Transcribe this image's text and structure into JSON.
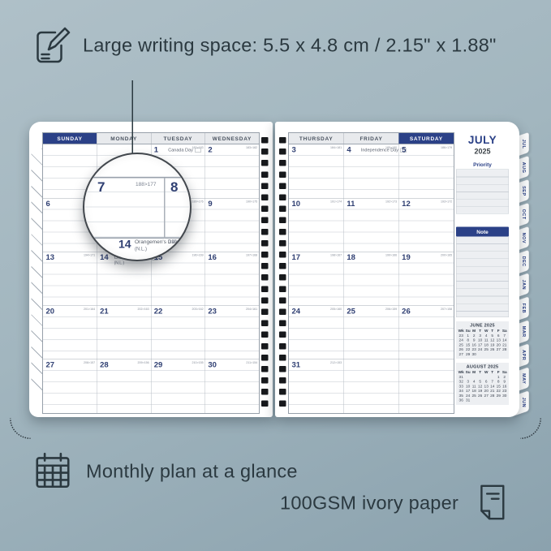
{
  "annotations": {
    "top": {
      "icon": "pencil-note-icon",
      "text": "Large writing space: 5.5 x 4.8 cm / 2.15\" x 1.88\""
    },
    "bottom_left": {
      "icon": "calendar-grid-icon",
      "text": "Monthly plan at a glance"
    },
    "bottom_right": {
      "icon": "paper-icon",
      "text": "100GSM ivory paper"
    }
  },
  "colors": {
    "navy": "#2b4187",
    "ink": "#2b3940",
    "page": "#ffffff",
    "panel": "#edeff2",
    "hole": "#17191c"
  },
  "planner": {
    "left_page": {
      "headers": [
        "SUNDAY",
        "MONDAY",
        "TUESDAY",
        "WEDNESDAY"
      ],
      "highlight_header_index": 0,
      "rows": [
        [
          {
            "day": "",
            "code": ""
          },
          {
            "day": "",
            "code": ""
          },
          {
            "day": "1",
            "code": "182>183",
            "holiday": "Canada Day",
            "flag": true
          },
          {
            "day": "2",
            "code": "183>182"
          }
        ],
        [
          {
            "day": "6",
            "code": "187>178"
          },
          {
            "day": "7",
            "code": "188>177"
          },
          {
            "day": "8",
            "code": "189>176"
          },
          {
            "day": "9",
            "code": "190>175"
          }
        ],
        [
          {
            "day": "13",
            "code": "194>171"
          },
          {
            "day": "14",
            "code": "195>170",
            "holiday": "Orangemen's Day",
            "holiday_sub": "(N.L.)",
            "flag": true
          },
          {
            "day": "15",
            "code": "196>169"
          },
          {
            "day": "16",
            "code": "197>168"
          }
        ],
        [
          {
            "day": "20",
            "code": "201>164"
          },
          {
            "day": "21",
            "code": "202>163"
          },
          {
            "day": "22",
            "code": "203>162"
          },
          {
            "day": "23",
            "code": "204>161"
          }
        ],
        [
          {
            "day": "27",
            "code": "208>157"
          },
          {
            "day": "28",
            "code": "209>156"
          },
          {
            "day": "29",
            "code": "210>155"
          },
          {
            "day": "30",
            "code": "211>154"
          }
        ]
      ]
    },
    "right_page": {
      "headers": [
        "THURSDAY",
        "FRIDAY",
        "SATURDAY"
      ],
      "highlight_header_index": 2,
      "rows": [
        [
          {
            "day": "3",
            "code": "184>181"
          },
          {
            "day": "4",
            "code": "185>180",
            "holiday": "Independence Day",
            "flag": true
          },
          {
            "day": "5",
            "code": "186>179"
          }
        ],
        [
          {
            "day": "10",
            "code": "191>174"
          },
          {
            "day": "11",
            "code": "192>173"
          },
          {
            "day": "12",
            "code": "193>172"
          }
        ],
        [
          {
            "day": "17",
            "code": "198>167"
          },
          {
            "day": "18",
            "code": "199>166"
          },
          {
            "day": "19",
            "code": "200>165"
          }
        ],
        [
          {
            "day": "24",
            "code": "205>160"
          },
          {
            "day": "25",
            "code": "206>159"
          },
          {
            "day": "26",
            "code": "207>158"
          }
        ],
        [
          {
            "day": "31",
            "code": "212>153"
          },
          {
            "day": "",
            "code": ""
          },
          {
            "day": "",
            "code": ""
          }
        ]
      ]
    },
    "sidebar": {
      "month": "JULY",
      "year": "2025",
      "priority_label": "Priority",
      "note_label": "Note",
      "mini_calendars": [
        {
          "title": "JUNE 2025",
          "cols": [
            "Wk",
            "Su",
            "M",
            "T",
            "W",
            "T",
            "F",
            "Sa"
          ],
          "weeks": [
            [
              "23",
              "1",
              "2",
              "3",
              "4",
              "5",
              "6",
              "7"
            ],
            [
              "24",
              "8",
              "9",
              "10",
              "11",
              "12",
              "13",
              "14"
            ],
            [
              "25",
              "15",
              "16",
              "17",
              "18",
              "19",
              "20",
              "21"
            ],
            [
              "26",
              "22",
              "23",
              "24",
              "25",
              "26",
              "27",
              "28"
            ],
            [
              "27",
              "29",
              "30",
              "",
              "",
              "",
              "",
              ""
            ]
          ]
        },
        {
          "title": "AUGUST 2025",
          "cols": [
            "Wk",
            "Su",
            "M",
            "T",
            "W",
            "T",
            "F",
            "Sa"
          ],
          "weeks": [
            [
              "31",
              "",
              "",
              "",
              "",
              "",
              "1",
              "2"
            ],
            [
              "32",
              "3",
              "4",
              "5",
              "6",
              "7",
              "8",
              "9"
            ],
            [
              "33",
              "10",
              "11",
              "12",
              "13",
              "14",
              "15",
              "16"
            ],
            [
              "34",
              "17",
              "18",
              "19",
              "20",
              "21",
              "22",
              "23"
            ],
            [
              "35",
              "24",
              "25",
              "26",
              "27",
              "28",
              "29",
              "30"
            ],
            [
              "36",
              "31",
              "",
              "",
              "",
              "",
              "",
              ""
            ]
          ]
        }
      ]
    },
    "tabs": [
      "JUL",
      "AUG",
      "SEP",
      "OCT",
      "NOV",
      "DEC",
      "JAN",
      "FEB",
      "MAR",
      "APR",
      "MAY",
      "JUN"
    ],
    "binding_holes_per_side": 24,
    "magnifier": {
      "day_left": "7",
      "code_left": "188>177",
      "day_right": "8",
      "bottom_day": "14",
      "bottom_holiday": "Orangemen's Day",
      "bottom_sub": "(N.L.)",
      "bottom_code": "195>170"
    }
  }
}
